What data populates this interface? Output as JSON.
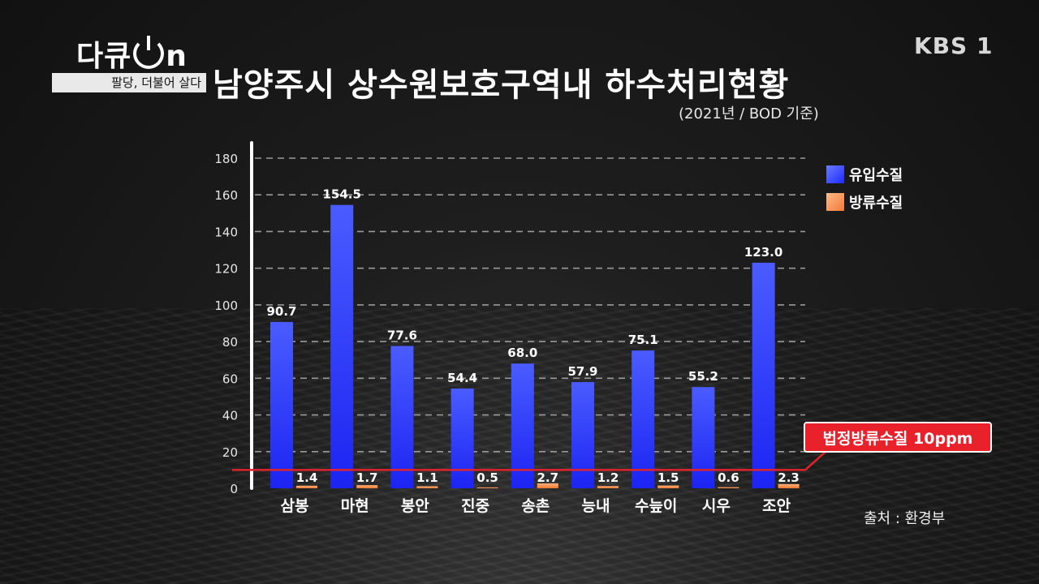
{
  "logo": {
    "main_left": "다큐",
    "main_right": "n",
    "sub": "팔당, 더불어 살다"
  },
  "broadcaster": "KBS 1",
  "title": "남양주시 상수원보호구역내 하수처리현황",
  "subtitle": "(2021년 / BOD 기준)",
  "source": "출처 : 환경부",
  "legal_limit_label": "법정방류수질 10ppm",
  "colors": {
    "inflow": "#3040ff",
    "outflow": "#f28a4a",
    "limit_line": "#e0232b"
  },
  "chart_data": {
    "type": "bar",
    "categories": [
      "삼봉",
      "마현",
      "봉안",
      "진중",
      "송촌",
      "능내",
      "수늪이",
      "시우",
      "조안"
    ],
    "series": [
      {
        "name": "유입수질",
        "values": [
          90.7,
          154.5,
          77.6,
          54.4,
          68.0,
          57.9,
          75.1,
          55.2,
          123.0
        ],
        "labels": [
          "90.7",
          "154.5",
          "77.6",
          "54.4",
          "68.0",
          "57.9",
          "75.1",
          "55.2",
          "123.0"
        ]
      },
      {
        "name": "방류수질",
        "values": [
          1.4,
          1.7,
          1.1,
          0.5,
          2.7,
          1.2,
          1.5,
          0.6,
          2.3
        ],
        "labels": [
          "1.4",
          "1.7",
          "1.1",
          "0.5",
          "2.7",
          "1.2",
          "1.5",
          "0.6",
          "2.3"
        ]
      }
    ],
    "y_ticks": [
      0,
      20,
      40,
      60,
      80,
      100,
      120,
      140,
      160,
      180
    ],
    "ylim": [
      0,
      180
    ],
    "reference_line": {
      "value": 10
    },
    "grid": true,
    "legend_position": "top-right"
  }
}
